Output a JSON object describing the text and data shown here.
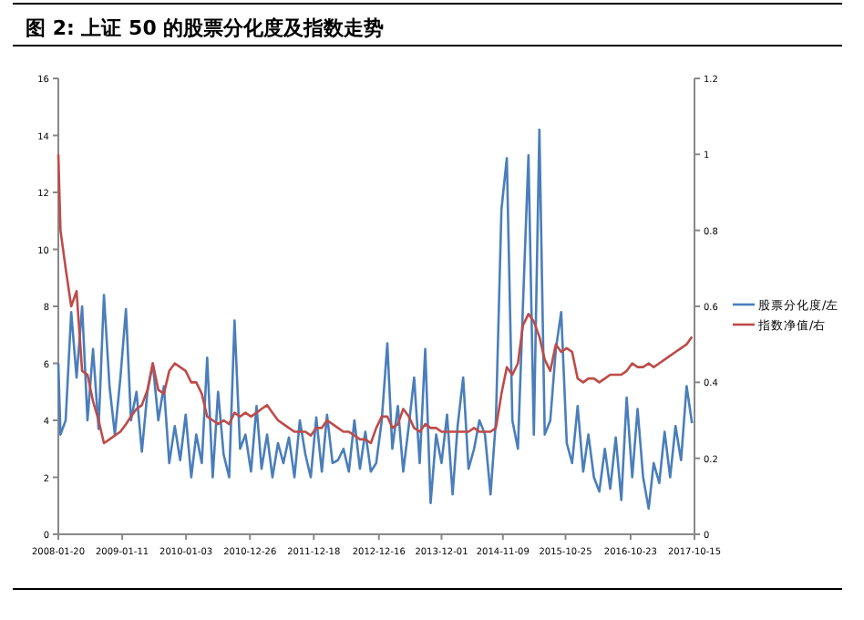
{
  "chart_data": {
    "type": "line",
    "title": "图 2:  上证 50 的股票分化度及指数走势",
    "x": [
      "2008-01-20",
      "2008-02",
      "2008-03",
      "2008-04",
      "2008-05",
      "2008-06",
      "2008-07",
      "2008-08",
      "2008-09",
      "2008-10",
      "2008-11",
      "2008-12",
      "2009-01",
      "2009-02",
      "2009-03",
      "2009-04",
      "2009-05",
      "2009-06",
      "2009-07",
      "2009-08",
      "2009-09",
      "2009-10",
      "2009-11",
      "2009-12",
      "2010-01",
      "2010-02",
      "2010-03",
      "2010-04",
      "2010-05",
      "2010-06",
      "2010-07",
      "2010-08",
      "2010-09",
      "2010-10",
      "2010-11",
      "2010-12",
      "2011-01",
      "2011-02",
      "2011-03",
      "2011-04",
      "2011-05",
      "2011-06",
      "2011-07",
      "2011-08",
      "2011-09",
      "2011-10",
      "2011-11",
      "2011-12",
      "2012-01",
      "2012-02",
      "2012-03",
      "2012-04",
      "2012-05",
      "2012-06",
      "2012-07",
      "2012-08",
      "2012-09",
      "2012-10",
      "2012-11",
      "2012-12",
      "2013-01",
      "2013-02",
      "2013-03",
      "2013-04",
      "2013-05",
      "2013-06",
      "2013-07",
      "2013-08",
      "2013-09",
      "2013-10",
      "2013-11",
      "2013-12",
      "2014-01",
      "2014-02",
      "2014-03",
      "2014-04",
      "2014-05",
      "2014-06",
      "2014-07",
      "2014-08",
      "2014-09",
      "2014-10",
      "2014-11",
      "2014-12",
      "2015-01",
      "2015-02",
      "2015-03",
      "2015-04",
      "2015-05",
      "2015-06",
      "2015-07",
      "2015-08",
      "2015-09",
      "2015-10",
      "2015-11",
      "2015-12",
      "2016-01",
      "2016-02",
      "2016-03",
      "2016-04",
      "2016-05",
      "2016-06",
      "2016-07",
      "2016-08",
      "2016-09",
      "2016-10",
      "2016-11",
      "2016-12",
      "2017-01",
      "2017-02",
      "2017-03",
      "2017-04",
      "2017-05",
      "2017-06",
      "2017-07",
      "2017-08",
      "2017-09",
      "2017-10"
    ],
    "series": [
      {
        "name": "股票分化度/左",
        "color": "#4a7ebb",
        "values": [
          6.0,
          3.5,
          4.0,
          7.8,
          5.5,
          8.0,
          4.0,
          6.5,
          3.7,
          8.4,
          5.2,
          3.5,
          5.5,
          7.9,
          4.0,
          5.0,
          2.9,
          5.0,
          6.0,
          4.0,
          5.2,
          2.5,
          3.8,
          2.6,
          4.2,
          2.0,
          3.5,
          2.5,
          6.2,
          2.0,
          5.0,
          2.8,
          2.0,
          7.5,
          3.0,
          3.5,
          2.2,
          4.5,
          2.3,
          3.5,
          2.0,
          3.2,
          2.5,
          3.4,
          2.0,
          4.0,
          2.8,
          2.0,
          4.1,
          2.2,
          4.2,
          2.5,
          2.6,
          3.0,
          2.2,
          4.0,
          2.3,
          3.6,
          2.2,
          2.5,
          4.0,
          6.7,
          3.0,
          4.5,
          2.2,
          3.8,
          5.5,
          2.5,
          6.5,
          1.1,
          3.5,
          2.5,
          4.2,
          1.4,
          3.8,
          5.5,
          2.3,
          3.0,
          4.0,
          3.5,
          1.4,
          4.0,
          11.4,
          13.2,
          4.0,
          3.0,
          8.0,
          13.3,
          3.5,
          14.2,
          3.5,
          4.0,
          6.5,
          7.8,
          3.2,
          2.5,
          4.5,
          2.2,
          3.5,
          2.0,
          1.5,
          3.0,
          1.6,
          3.4,
          1.2,
          4.8,
          2.0,
          4.4,
          2.0,
          0.9,
          2.5,
          1.8,
          3.6,
          2.0,
          3.8,
          2.6,
          5.2,
          3.9
        ]
      },
      {
        "name": "指数净值/右",
        "color": "#be4b48",
        "axis": "y2",
        "values": [
          1.0,
          0.8,
          0.7,
          0.6,
          0.64,
          0.43,
          0.42,
          0.35,
          0.3,
          0.24,
          0.25,
          0.26,
          0.27,
          0.29,
          0.31,
          0.33,
          0.34,
          0.38,
          0.45,
          0.38,
          0.37,
          0.43,
          0.45,
          0.44,
          0.43,
          0.4,
          0.4,
          0.37,
          0.31,
          0.3,
          0.29,
          0.3,
          0.29,
          0.32,
          0.31,
          0.32,
          0.31,
          0.32,
          0.33,
          0.34,
          0.32,
          0.3,
          0.29,
          0.28,
          0.27,
          0.27,
          0.27,
          0.26,
          0.28,
          0.28,
          0.3,
          0.29,
          0.28,
          0.27,
          0.27,
          0.26,
          0.25,
          0.25,
          0.24,
          0.28,
          0.31,
          0.31,
          0.28,
          0.29,
          0.33,
          0.31,
          0.28,
          0.27,
          0.29,
          0.28,
          0.28,
          0.27,
          0.27,
          0.27,
          0.27,
          0.27,
          0.27,
          0.28,
          0.27,
          0.27,
          0.27,
          0.28,
          0.37,
          0.44,
          0.42,
          0.45,
          0.55,
          0.58,
          0.56,
          0.52,
          0.46,
          0.43,
          0.5,
          0.48,
          0.49,
          0.48,
          0.41,
          0.4,
          0.41,
          0.41,
          0.4,
          0.41,
          0.42,
          0.42,
          0.42,
          0.43,
          0.45,
          0.44,
          0.44,
          0.45,
          0.44,
          0.45,
          0.46,
          0.47,
          0.48,
          0.49,
          0.5,
          0.52
        ]
      }
    ],
    "xlim": [
      "2008-01-20",
      "2017-10-15"
    ],
    "xticks": [
      "2008-01-20",
      "2009-01-11",
      "2010-01-03",
      "2010-12-26",
      "2011-12-18",
      "2012-12-16",
      "2013-12-01",
      "2014-11-09",
      "2015-10-25",
      "2016-10-23",
      "2017-10-15"
    ],
    "ylim": [
      0,
      16
    ],
    "yticks": [
      0,
      2,
      4,
      6,
      8,
      10,
      12,
      14,
      16
    ],
    "y2lim": [
      0,
      1.2
    ],
    "y2ticks": [
      0,
      0.2,
      0.4,
      0.6,
      0.8,
      1,
      1.2
    ],
    "legend": "right",
    "grid": false
  }
}
